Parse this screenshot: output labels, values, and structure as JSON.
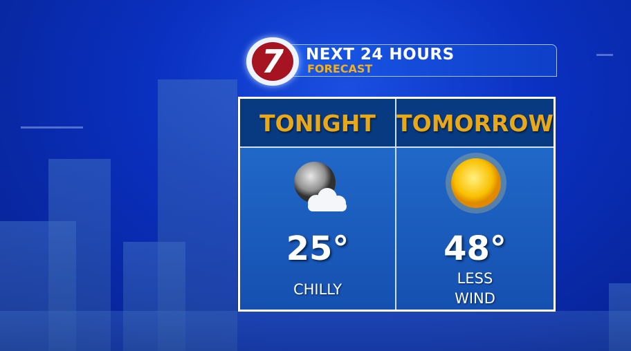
{
  "header": {
    "logo": "7",
    "title": "NEXT 24 HOURS",
    "subtitle": "FORECAST"
  },
  "columns": [
    {
      "label": "TONIGHT",
      "icon": "moon-cloud-icon",
      "temp": "25°",
      "desc": [
        "CHILLY"
      ]
    },
    {
      "label": "TOMORROW",
      "icon": "sun-icon",
      "temp": "48°",
      "desc": [
        "LESS",
        "WIND"
      ]
    }
  ],
  "colors": {
    "header_text": "#e8a818",
    "subtitle": "#f0b020",
    "logo_red": "#a51420"
  }
}
